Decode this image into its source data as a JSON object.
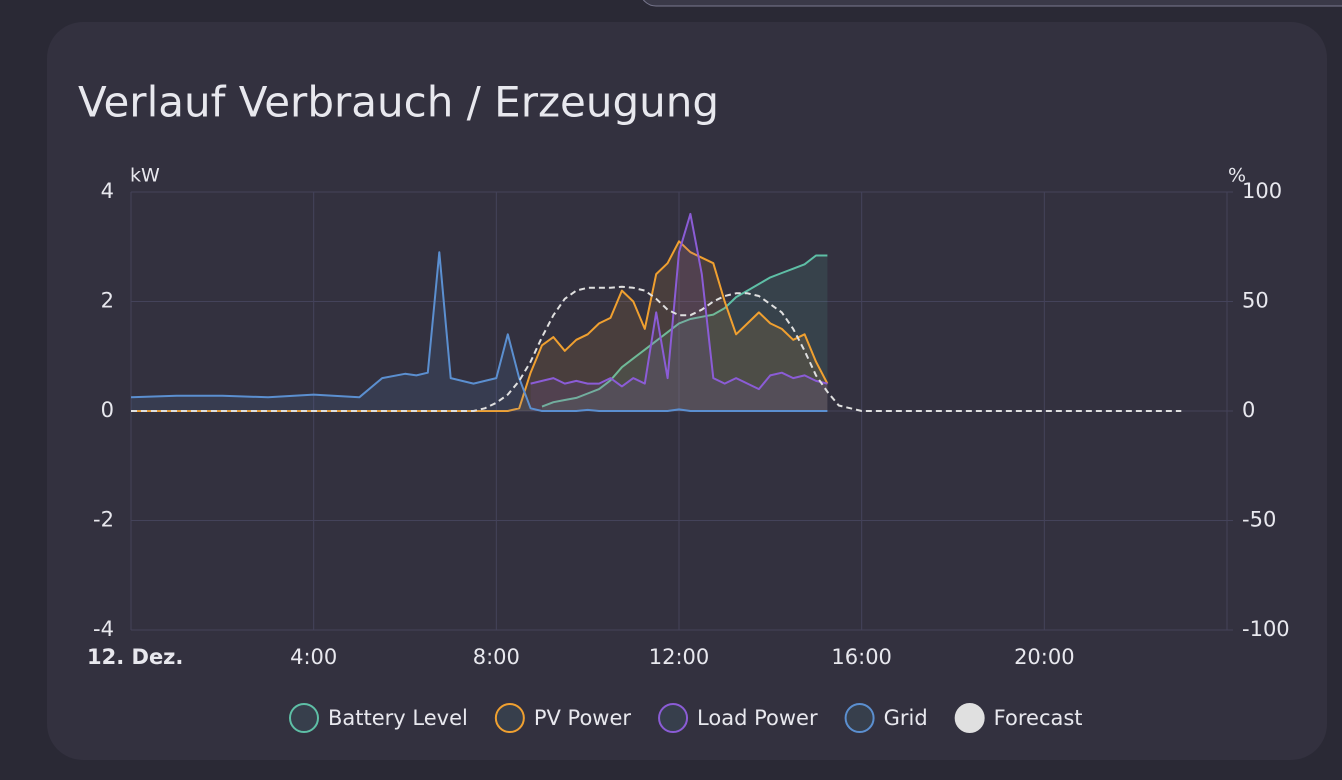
{
  "chart_data": {
    "type": "line",
    "title": "Verlauf Verbrauch / Erzeugung",
    "y_label": "kW",
    "y2_label": "%",
    "x": [
      0,
      1,
      2,
      3,
      4,
      5,
      5.5,
      6,
      6.25,
      6.5,
      6.75,
      7,
      7.25,
      7.5,
      7.75,
      8,
      8.25,
      8.5,
      8.75,
      9,
      9.25,
      9.5,
      9.75,
      10,
      10.25,
      10.5,
      10.75,
      11,
      11.25,
      11.5,
      11.75,
      12,
      12.25,
      12.5,
      12.75,
      13,
      13.25,
      13.5,
      13.75,
      14,
      14.25,
      14.5,
      14.75,
      15,
      15.25,
      15.5,
      16,
      17,
      18,
      19,
      20,
      21,
      22,
      23
    ],
    "xlim": [
      0,
      24
    ],
    "xticks": [
      {
        "value": 0,
        "label": "12. Dez."
      },
      {
        "value": 4,
        "label": "4:00"
      },
      {
        "value": 8,
        "label": "8:00"
      },
      {
        "value": 12,
        "label": "12:00"
      },
      {
        "value": 16,
        "label": "16:00"
      },
      {
        "value": 20,
        "label": "20:00"
      }
    ],
    "ylim": [
      -4,
      4
    ],
    "yticks": [
      -4,
      -2,
      0,
      2,
      4
    ],
    "y2lim": [
      -100,
      100
    ],
    "y2ticks": [
      -100,
      -50,
      0,
      50,
      100
    ],
    "grid": true,
    "series": [
      {
        "name": "Battery Level",
        "color": "#5ebfa6",
        "axis": "y2",
        "values": [
          null,
          null,
          null,
          null,
          null,
          null,
          null,
          null,
          null,
          null,
          null,
          null,
          null,
          null,
          null,
          null,
          null,
          null,
          null,
          2,
          4,
          5,
          6,
          8,
          10,
          14,
          20,
          24,
          28,
          32,
          36,
          40,
          42,
          43,
          44,
          47,
          52,
          55,
          58,
          61,
          63,
          65,
          67,
          71,
          71,
          null,
          null,
          null,
          null,
          null,
          null,
          null,
          null,
          null
        ]
      },
      {
        "name": "PV Power",
        "color": "#f0a030",
        "values": [
          0,
          0,
          0,
          0,
          0,
          0,
          0,
          0,
          0,
          0,
          0,
          0,
          0,
          0,
          0,
          0,
          0,
          0.05,
          0.7,
          1.2,
          1.35,
          1.1,
          1.3,
          1.4,
          1.6,
          1.7,
          2.2,
          2.0,
          1.5,
          2.5,
          2.7,
          3.1,
          2.9,
          2.8,
          2.7,
          2.0,
          1.4,
          1.6,
          1.8,
          1.6,
          1.5,
          1.3,
          1.4,
          0.9,
          0.5,
          null,
          null,
          null,
          null,
          null,
          null,
          null,
          null,
          null
        ]
      },
      {
        "name": "Load Power",
        "color": "#8b5cd6",
        "values": [
          null,
          null,
          null,
          null,
          null,
          null,
          null,
          null,
          null,
          null,
          null,
          null,
          null,
          null,
          null,
          null,
          null,
          null,
          0.5,
          0.55,
          0.6,
          0.5,
          0.55,
          0.5,
          0.5,
          0.6,
          0.45,
          0.6,
          0.5,
          1.8,
          0.6,
          2.9,
          3.6,
          2.5,
          0.6,
          0.5,
          0.6,
          0.5,
          0.4,
          0.65,
          0.7,
          0.6,
          0.65,
          0.55,
          0.5,
          null,
          null,
          null,
          null,
          null,
          null,
          null,
          null,
          null
        ]
      },
      {
        "name": "Grid",
        "color": "#5b8fd0",
        "values": [
          0.25,
          0.28,
          0.28,
          0.25,
          0.3,
          0.25,
          0.6,
          0.68,
          0.65,
          0.7,
          2.9,
          0.6,
          0.55,
          0.5,
          0.55,
          0.6,
          1.4,
          0.6,
          0.05,
          0,
          0,
          0,
          0,
          0.02,
          0,
          0,
          0,
          0,
          0,
          0,
          0,
          0.03,
          0,
          0,
          0,
          0,
          0,
          0,
          0,
          0,
          0,
          0,
          0,
          0,
          0,
          null,
          null,
          null,
          null,
          null,
          null,
          null,
          null,
          null
        ]
      },
      {
        "name": "Forecast",
        "color": "#e0e0e0",
        "dashed": true,
        "values": [
          0,
          0,
          0,
          0,
          0,
          0,
          0,
          0,
          0,
          0,
          0,
          0,
          0,
          0,
          0.05,
          0.15,
          0.3,
          0.55,
          0.9,
          1.35,
          1.75,
          2.05,
          2.2,
          2.25,
          2.25,
          2.25,
          2.27,
          2.25,
          2.2,
          2.05,
          1.85,
          1.75,
          1.75,
          1.85,
          2.0,
          2.1,
          2.15,
          2.15,
          2.1,
          1.95,
          1.8,
          1.5,
          1.1,
          0.65,
          0.35,
          0.1,
          0,
          0,
          0,
          0,
          0,
          0,
          0,
          0
        ]
      }
    ]
  }
}
